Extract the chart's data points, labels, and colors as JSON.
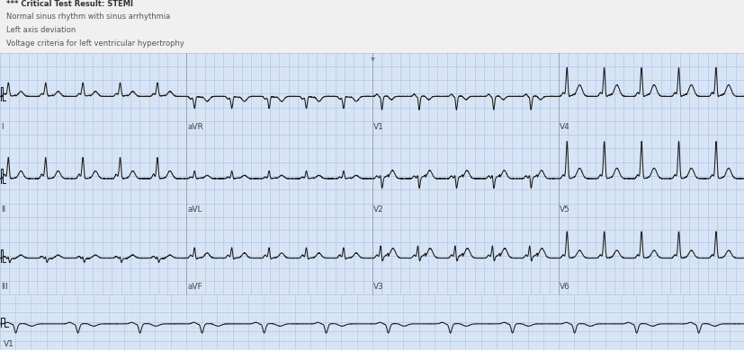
{
  "title_lines": [
    "*** Critical Test Result: STEMI",
    "Normal sinus rhythm with sinus arrhythmia",
    "Left axis deviation",
    "Voltage criteria for left ventricular hypertrophy"
  ],
  "title_bold": [
    true,
    false,
    false,
    false
  ],
  "title_color": "#555555",
  "title_bold_color": "#333333",
  "bg_color": "#dce8f8",
  "header_bg": "#f0f0f0",
  "grid_minor_color": "#c5d8ee",
  "grid_major_color": "#adc4e0",
  "ecg_color": "#1a1a1a",
  "label_color": "#444444",
  "sep_line_color": "#555555",
  "fig_width": 8.28,
  "fig_height": 3.9,
  "dpi": 100,
  "leads_row1": [
    "I",
    "aVR",
    "V1",
    "V4"
  ],
  "leads_row2": [
    "II",
    "aVL",
    "V2",
    "V5"
  ],
  "leads_row3": [
    "III",
    "aVF",
    "V3",
    "V6"
  ],
  "rhythm_lead": "V1",
  "n_beats_short": 5,
  "n_beats_rhythm": 12
}
